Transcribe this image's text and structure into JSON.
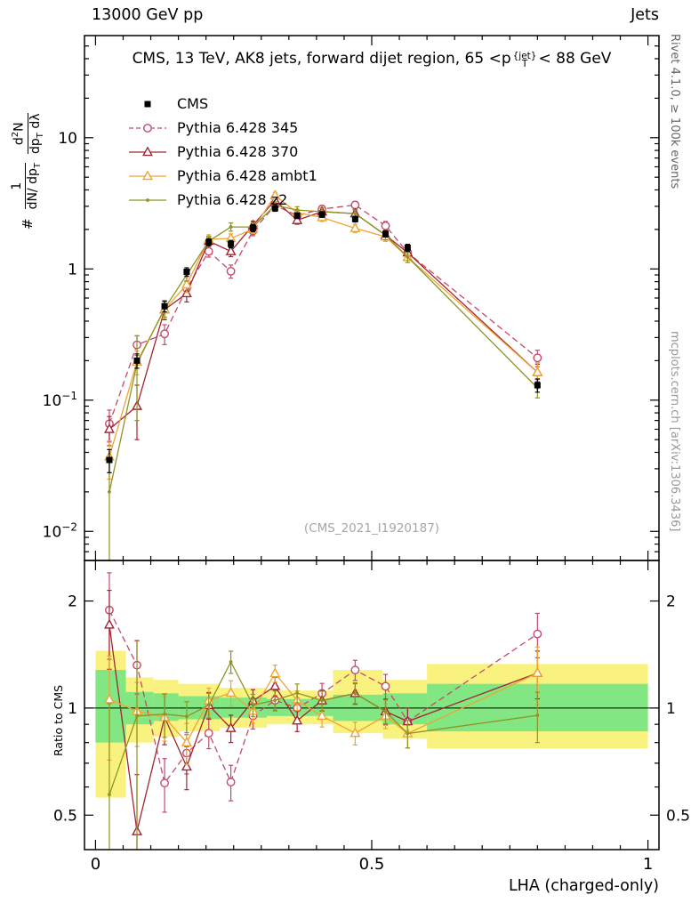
{
  "header": {
    "left": "13000 GeV pp",
    "right": "Jets"
  },
  "title": {
    "pre": "CMS, 13 TeV, AK8 jets, forward dijet region, 65 <p",
    "sup": "{jet}",
    "sub": "T",
    "post": "< 88 GeV"
  },
  "ylabel": {
    "hash": "#",
    "frac1_num": "1",
    "frac1_den_pre": "dN/ dp",
    "frac1_den_sub": "T",
    "frac2_num_pre": "d",
    "frac2_num_exp": "2",
    "frac2_num_post": "N",
    "frac2_den_pre": "dp",
    "frac2_den_sub": "T",
    "frac2_den_post": " dλ"
  },
  "ratio_ylabel": "Ratio to CMS",
  "xlabel": "LHA (charged-only)",
  "watermark": "(CMS_2021_I1920187)",
  "side_notes": {
    "top_right": "Rivet 4.1.0, ≥ 100k events",
    "bottom_right": "mcplots.cern.ch [arXiv:1306.3436]"
  },
  "chart_data": {
    "type": "line",
    "title": "CMS, 13 TeV, AK8 jets, forward dijet region, 65 < pT^{jet} < 88 GeV",
    "xlabel": "LHA (charged-only)",
    "ylabel": "# 1/(dN/dpT) d²N/(dpT dλ)",
    "ratio_ylabel": "Ratio to CMS",
    "yscale": "log",
    "grid": false,
    "legend_position": "top-left",
    "xlim": [
      -0.02,
      1.02
    ],
    "main_ylim": [
      0.006,
      60
    ],
    "ratio_ylim": [
      0.4,
      2.6
    ],
    "x": [
      0.025,
      0.075,
      0.125,
      0.165,
      0.205,
      0.245,
      0.285,
      0.325,
      0.365,
      0.41,
      0.47,
      0.525,
      0.565,
      0.8
    ],
    "series": [
      {
        "name": "CMS",
        "color": "#000000",
        "marker": "square",
        "line": "none",
        "values": [
          0.035,
          0.2,
          0.52,
          0.95,
          1.6,
          1.55,
          2.05,
          2.9,
          2.55,
          2.6,
          2.4,
          1.85,
          1.45,
          0.13
        ],
        "errors": [
          0.007,
          0.025,
          0.05,
          0.07,
          0.1,
          0.1,
          0.13,
          0.15,
          0.13,
          0.13,
          0.12,
          0.1,
          0.09,
          0.015
        ]
      },
      {
        "name": "Pythia 6.428 345",
        "color": "#c6496c",
        "marker": "circle",
        "line": "dashed",
        "values": [
          0.066,
          0.264,
          0.32,
          0.71,
          1.36,
          0.96,
          1.95,
          3.05,
          2.55,
          2.86,
          3.07,
          2.13,
          1.33,
          0.21
        ],
        "errors": [
          0.018,
          0.045,
          0.055,
          0.09,
          0.13,
          0.11,
          0.16,
          0.2,
          0.17,
          0.19,
          0.2,
          0.17,
          0.12,
          0.03
        ]
      },
      {
        "name": "Pythia 6.428 370",
        "color": "#a12433",
        "marker": "triangle",
        "line": "solid",
        "values": [
          0.06,
          0.09,
          0.49,
          0.65,
          1.63,
          1.36,
          2.15,
          3.34,
          2.35,
          2.73,
          2.64,
          1.81,
          1.33,
          0.163
        ],
        "errors": [
          0.015,
          0.04,
          0.08,
          0.09,
          0.14,
          0.12,
          0.16,
          0.2,
          0.16,
          0.18,
          0.18,
          0.15,
          0.12,
          0.025
        ]
      },
      {
        "name": "Pythia 6.428 ambt1",
        "color": "#f0a431",
        "marker": "triangle",
        "line": "solid",
        "values": [
          0.037,
          0.196,
          0.49,
          0.76,
          1.68,
          1.71,
          2.01,
          3.63,
          2.68,
          2.47,
          2.04,
          1.76,
          1.23,
          0.163
        ],
        "errors": [
          0.012,
          0.04,
          0.07,
          0.1,
          0.14,
          0.14,
          0.15,
          0.2,
          0.17,
          0.17,
          0.15,
          0.14,
          0.11,
          0.03
        ]
      },
      {
        "name": "Pythia 6.428 z2",
        "color": "#8f9422",
        "marker": "dot",
        "line": "solid",
        "values": [
          0.02,
          0.19,
          0.5,
          0.9,
          1.63,
          2.09,
          2.09,
          3.05,
          2.81,
          2.73,
          2.64,
          1.81,
          1.23,
          0.124
        ],
        "errors": [
          0.016,
          0.12,
          0.07,
          0.09,
          0.13,
          0.15,
          0.15,
          0.19,
          0.17,
          0.17,
          0.17,
          0.14,
          0.11,
          0.02
        ]
      }
    ],
    "main_yticks": [
      {
        "v": 10,
        "base": "10",
        "exp": ""
      },
      {
        "v": 1,
        "base": "1",
        "exp": ""
      },
      {
        "v": 0.1,
        "base": "10",
        "exp": "−1"
      },
      {
        "v": 0.01,
        "base": "10",
        "exp": "−2"
      }
    ],
    "ratio_yticks": [
      {
        "v": 2,
        "label": "2"
      },
      {
        "v": 1,
        "label": "1"
      },
      {
        "v": 0.5,
        "label": "0.5"
      }
    ],
    "xticks": [
      {
        "v": 0,
        "label": "0"
      },
      {
        "v": 0.5,
        "label": "0.5"
      },
      {
        "v": 1,
        "label": "1"
      }
    ],
    "bands": [
      {
        "x0": 0.0,
        "x1": 0.055,
        "ylo": 0.56,
        "yhi": 1.45,
        "glo": 0.8,
        "ghi": 1.28
      },
      {
        "x0": 0.055,
        "x1": 0.105,
        "ylo": 0.8,
        "yhi": 1.22,
        "glo": 0.9,
        "ghi": 1.11
      },
      {
        "x0": 0.105,
        "x1": 0.15,
        "ylo": 0.83,
        "yhi": 1.2,
        "glo": 0.92,
        "ghi": 1.1
      },
      {
        "x0": 0.15,
        "x1": 0.225,
        "ylo": 0.86,
        "yhi": 1.17,
        "glo": 0.93,
        "ghi": 1.08
      },
      {
        "x0": 0.225,
        "x1": 0.31,
        "ylo": 0.88,
        "yhi": 1.14,
        "glo": 0.94,
        "ghi": 1.07
      },
      {
        "x0": 0.31,
        "x1": 0.43,
        "ylo": 0.9,
        "yhi": 1.12,
        "glo": 0.95,
        "ghi": 1.06
      },
      {
        "x0": 0.43,
        "x1": 0.52,
        "ylo": 0.85,
        "yhi": 1.28,
        "glo": 0.92,
        "ghi": 1.09
      },
      {
        "x0": 0.52,
        "x1": 0.6,
        "ylo": 0.82,
        "yhi": 1.2,
        "glo": 0.9,
        "ghi": 1.1
      },
      {
        "x0": 0.6,
        "x1": 1.0,
        "ylo": 0.77,
        "yhi": 1.33,
        "glo": 0.86,
        "ghi": 1.17
      }
    ],
    "colors": {
      "band_yellow": "#f9f27f",
      "band_green": "#82e682",
      "frame": "#000000"
    }
  }
}
